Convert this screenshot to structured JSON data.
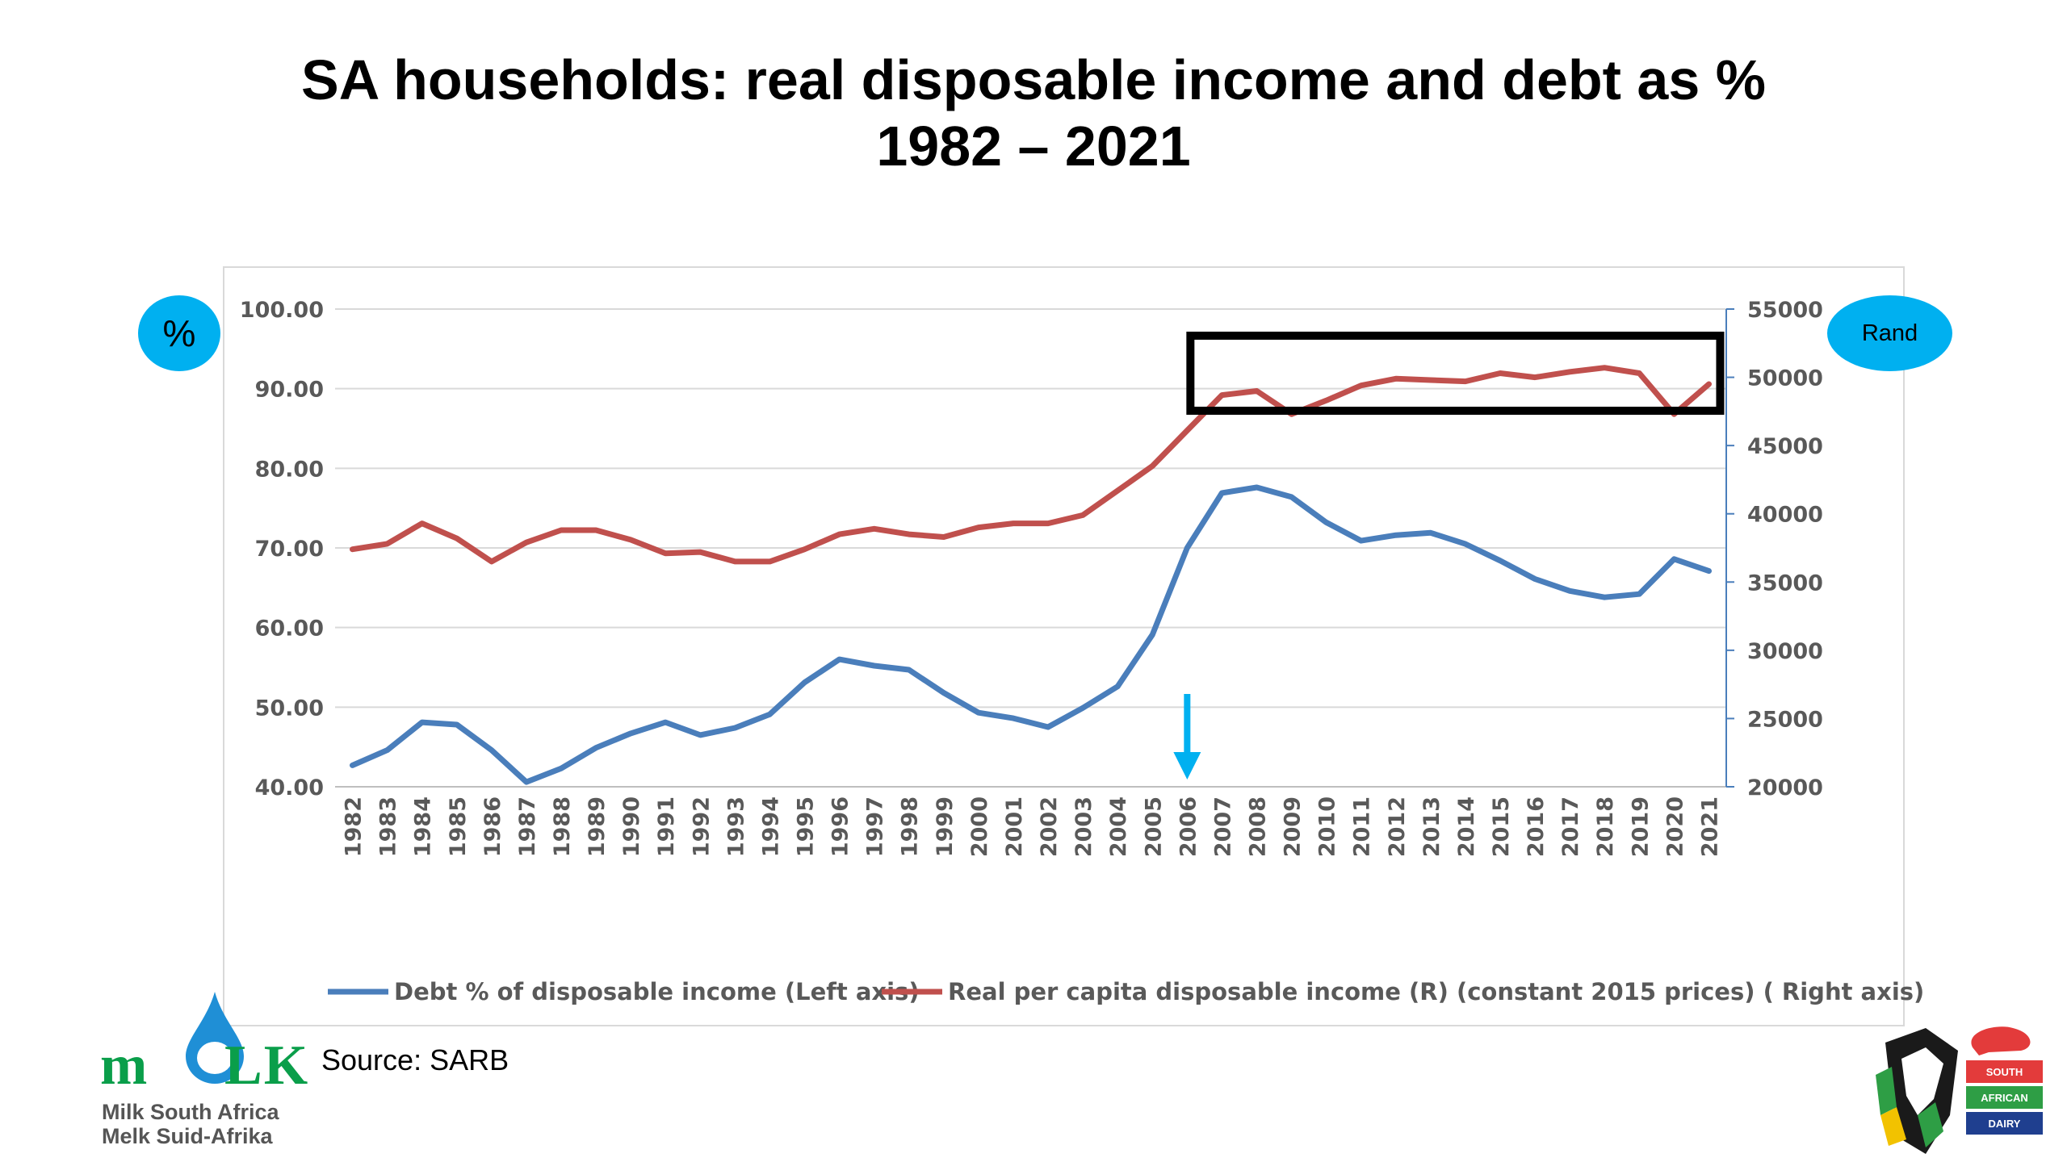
{
  "title": {
    "line1": "SA households: real disposable income and debt as %",
    "line2": "1982 – 2021"
  },
  "badges": {
    "left": "%",
    "right": "Rand"
  },
  "source": "Source: SARB",
  "logo_milk": {
    "wordmark_m": "m",
    "wordmark_lk": "LK",
    "line1": "Milk South Africa",
    "line2": "Melk Suid-Afrika"
  },
  "logo_dairy": {
    "flag1": "SOUTH",
    "flag2": "AFRICAN",
    "flag3": "DAIRY"
  },
  "colors": {
    "debt_series": "#4a7ebb",
    "income_series": "#c0504d",
    "badge": "#00b0f0",
    "highlight_box": "#000000",
    "arrow": "#00b0f0",
    "gridline": "#d9d9d9"
  },
  "chart_data": {
    "type": "line",
    "title": "",
    "x": [
      "1982",
      "1983",
      "1984",
      "1985",
      "1986",
      "1987",
      "1988",
      "1989",
      "1990",
      "1991",
      "1992",
      "1993",
      "1994",
      "1995",
      "1996",
      "1997",
      "1998",
      "1999",
      "2000",
      "2001",
      "2002",
      "2003",
      "2004",
      "2005",
      "2006",
      "2007",
      "2008",
      "2009",
      "2010",
      "2011",
      "2012",
      "2013",
      "2014",
      "2015",
      "2016",
      "2017",
      "2018",
      "2019",
      "2020",
      "2021"
    ],
    "series": [
      {
        "name": "Debt % of disposable income (Left axis)",
        "axis": "left",
        "values": [
          42.7,
          44.6,
          48.1,
          47.8,
          44.6,
          40.6,
          42.3,
          44.9,
          46.7,
          48.1,
          46.5,
          47.4,
          49.1,
          53.1,
          56.0,
          55.2,
          54.7,
          51.8,
          49.3,
          48.6,
          47.5,
          49.9,
          52.6,
          59.1,
          70.0,
          76.9,
          77.6,
          76.4,
          73.2,
          70.9,
          71.6,
          71.9,
          70.5,
          68.4,
          66.1,
          64.6,
          63.8,
          64.2,
          68.6,
          67.1
        ]
      },
      {
        "name": "Real per capita disposable income (R) (constant 2015 prices) ( Right axis)",
        "axis": "right",
        "values": [
          37400,
          37800,
          39300,
          38200,
          36500,
          37900,
          38800,
          38800,
          38100,
          37100,
          37200,
          36500,
          36500,
          37400,
          38500,
          38900,
          38500,
          38300,
          39000,
          39300,
          39300,
          39900,
          41700,
          43500,
          46100,
          48700,
          49000,
          47300,
          48300,
          49400,
          49900,
          49800,
          49700,
          50300,
          50000,
          50400,
          50700,
          50300,
          47300,
          49500
        ]
      }
    ],
    "y_left": {
      "ticks": [
        "100.00",
        "90.00",
        "80.00",
        "70.00",
        "60.00",
        "50.00",
        "40.00"
      ],
      "min": 40,
      "max": 100
    },
    "y_right": {
      "ticks": [
        "55000",
        "50000",
        "45000",
        "40000",
        "35000",
        "30000",
        "25000",
        "20000"
      ],
      "min": 20000,
      "max": 55000
    },
    "annotations": {
      "highlight_box_years": [
        "2006",
        "2021"
      ],
      "arrow_year": "2006"
    },
    "grid": true,
    "legend_position": "bottom"
  }
}
